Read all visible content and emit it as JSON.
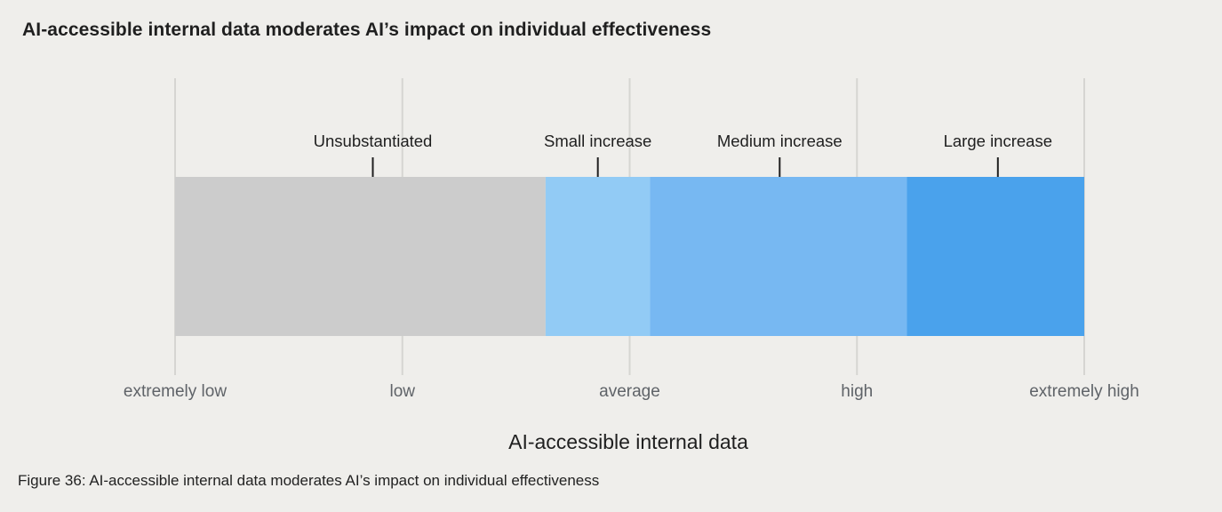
{
  "chart_data": {
    "type": "bar",
    "orientation": "horizontal-range",
    "title": "AI-accessible internal data moderates AI’s impact on individual effectiveness",
    "xlabel": "AI-accessible internal data",
    "ylabel": "",
    "x_ticks": [
      "extremely low",
      "low",
      "average",
      "high",
      "extremely high"
    ],
    "xlim": [
      0,
      4
    ],
    "grid": true,
    "bands": [
      {
        "name": "Unsubstantiated",
        "start": 0.0,
        "end": 1.63,
        "marker": 0.87,
        "color": "#cccccc"
      },
      {
        "name": "Small increase",
        "start": 1.63,
        "end": 2.09,
        "marker": 1.86,
        "color": "#92cbf5"
      },
      {
        "name": "Medium increase",
        "start": 2.09,
        "end": 3.22,
        "marker": 2.66,
        "color": "#77b8f2"
      },
      {
        "name": "Large increase",
        "start": 3.22,
        "end": 4.0,
        "marker": 3.62,
        "color": "#4aa2ec"
      }
    ]
  },
  "caption": "Figure 36: AI-accessible internal data moderates AI’s impact on individual effectiveness",
  "colors": {
    "grid": "#d6d5d2",
    "tick_text": "#5f6368"
  }
}
